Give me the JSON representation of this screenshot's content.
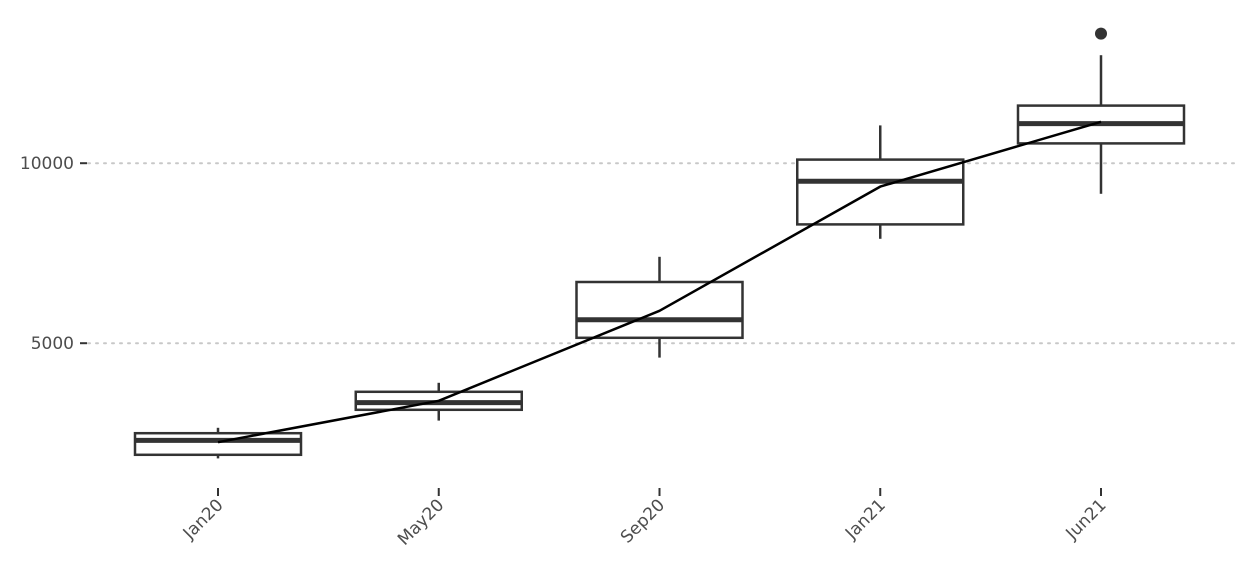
{
  "chart_data": {
    "type": "box",
    "title": "",
    "xlabel": "",
    "ylabel": "",
    "categories": [
      "Jan20",
      "May20",
      "Sep20",
      "Jan21",
      "Jun21"
    ],
    "boxes": [
      {
        "category": "Jan20",
        "whisker_low": 1800,
        "q1": 1900,
        "median": 2300,
        "q3": 2500,
        "whisker_high": 2650,
        "outliers": []
      },
      {
        "category": "May20",
        "whisker_low": 2850,
        "q1": 3150,
        "median": 3350,
        "q3": 3650,
        "whisker_high": 3900,
        "outliers": []
      },
      {
        "category": "Sep20",
        "whisker_low": 4600,
        "q1": 5150,
        "median": 5650,
        "q3": 6700,
        "whisker_high": 7400,
        "outliers": []
      },
      {
        "category": "Jan21",
        "whisker_low": 7900,
        "q1": 8300,
        "median": 9500,
        "q3": 10100,
        "whisker_high": 11050,
        "outliers": []
      },
      {
        "category": "Jun21",
        "whisker_low": 9150,
        "q1": 10550,
        "median": 11100,
        "q3": 11600,
        "whisker_high": 13000,
        "outliers": [
          13600
        ]
      }
    ],
    "line_series": {
      "values": [
        2250,
        3400,
        5900,
        9350,
        11150
      ]
    },
    "y_ticks": [
      5000,
      10000
    ],
    "ylim": [
      1200,
      14200
    ],
    "grid": {
      "horizontal": true,
      "vertical": false,
      "style": "dotted"
    },
    "legend": "none"
  }
}
